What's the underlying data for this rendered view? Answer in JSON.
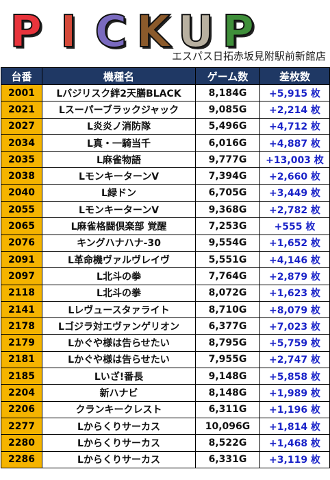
{
  "banner": {
    "logo_text": "PICKUP",
    "logo_colors": [
      "#e8343c",
      "#d44a3a",
      "#7a6abf",
      "#8b5a2b",
      "#b8b0a0",
      "#3f8f3a"
    ],
    "subtitle": "エスパス日拓赤坂見附駅前新館店"
  },
  "table": {
    "headers": [
      "台番",
      "機種名",
      "ゲーム数",
      "差枚数"
    ],
    "rows": [
      {
        "no": "2001",
        "name": "Lバジリスク絆2天膳BLACK",
        "games": "8,184G",
        "diff": "+5,915 枚"
      },
      {
        "no": "2021",
        "name": "Lスーパーブラックジャック",
        "games": "9,085G",
        "diff": "+2,214 枚"
      },
      {
        "no": "2027",
        "name": "L炎炎ノ消防隊",
        "games": "5,496G",
        "diff": "+4,712 枚"
      },
      {
        "no": "2034",
        "name": "L真・一騎当千",
        "games": "6,016G",
        "diff": "+4,887 枚"
      },
      {
        "no": "2035",
        "name": "L麻雀物語",
        "games": "9,777G",
        "diff": "+13,003 枚"
      },
      {
        "no": "2038",
        "name": "LモンキーターンV",
        "games": "7,394G",
        "diff": "+2,660 枚"
      },
      {
        "no": "2040",
        "name": "L緑ドン",
        "games": "6,705G",
        "diff": "+3,449 枚"
      },
      {
        "no": "2055",
        "name": "LモンキーターンV",
        "games": "9,368G",
        "diff": "+2,782 枚"
      },
      {
        "no": "2065",
        "name": "L麻雀格闘倶楽部 覚醒",
        "games": "7,253G",
        "diff": "+555 枚"
      },
      {
        "no": "2076",
        "name": "キングハナハナ-30",
        "games": "9,554G",
        "diff": "+1,652 枚"
      },
      {
        "no": "2091",
        "name": "L革命機ヴァルヴレイヴ",
        "games": "5,551G",
        "diff": "+4,146 枚"
      },
      {
        "no": "2097",
        "name": "L北斗の拳",
        "games": "7,764G",
        "diff": "+2,879 枚"
      },
      {
        "no": "2118",
        "name": "L北斗の拳",
        "games": "8,072G",
        "diff": "+1,623 枚"
      },
      {
        "no": "2141",
        "name": "Lレヴュースタァライト",
        "games": "8,710G",
        "diff": "+8,079 枚"
      },
      {
        "no": "2178",
        "name": "Lゴジラ対エヴァンゲリオン",
        "games": "6,377G",
        "diff": "+7,023 枚"
      },
      {
        "no": "2179",
        "name": "Lかぐや様は告らせたい",
        "games": "8,795G",
        "diff": "+5,759 枚"
      },
      {
        "no": "2181",
        "name": "Lかぐや様は告らせたい",
        "games": "7,955G",
        "diff": "+2,747 枚"
      },
      {
        "no": "2185",
        "name": "Lいざ!番長",
        "games": "9,148G",
        "diff": "+5,858 枚"
      },
      {
        "no": "2204",
        "name": "新ハナビ",
        "games": "8,148G",
        "diff": "+1,989 枚"
      },
      {
        "no": "2206",
        "name": "クランキークレスト",
        "games": "6,311G",
        "diff": "+1,196 枚"
      },
      {
        "no": "2277",
        "name": "Lからくりサーカス",
        "games": "10,096G",
        "diff": "+1,814 枚"
      },
      {
        "no": "2280",
        "name": "Lからくりサーカス",
        "games": "8,522G",
        "diff": "+1,468 枚"
      },
      {
        "no": "2286",
        "name": "Lからくりサーカス",
        "games": "6,331G",
        "diff": "+3,119 枚"
      }
    ]
  }
}
